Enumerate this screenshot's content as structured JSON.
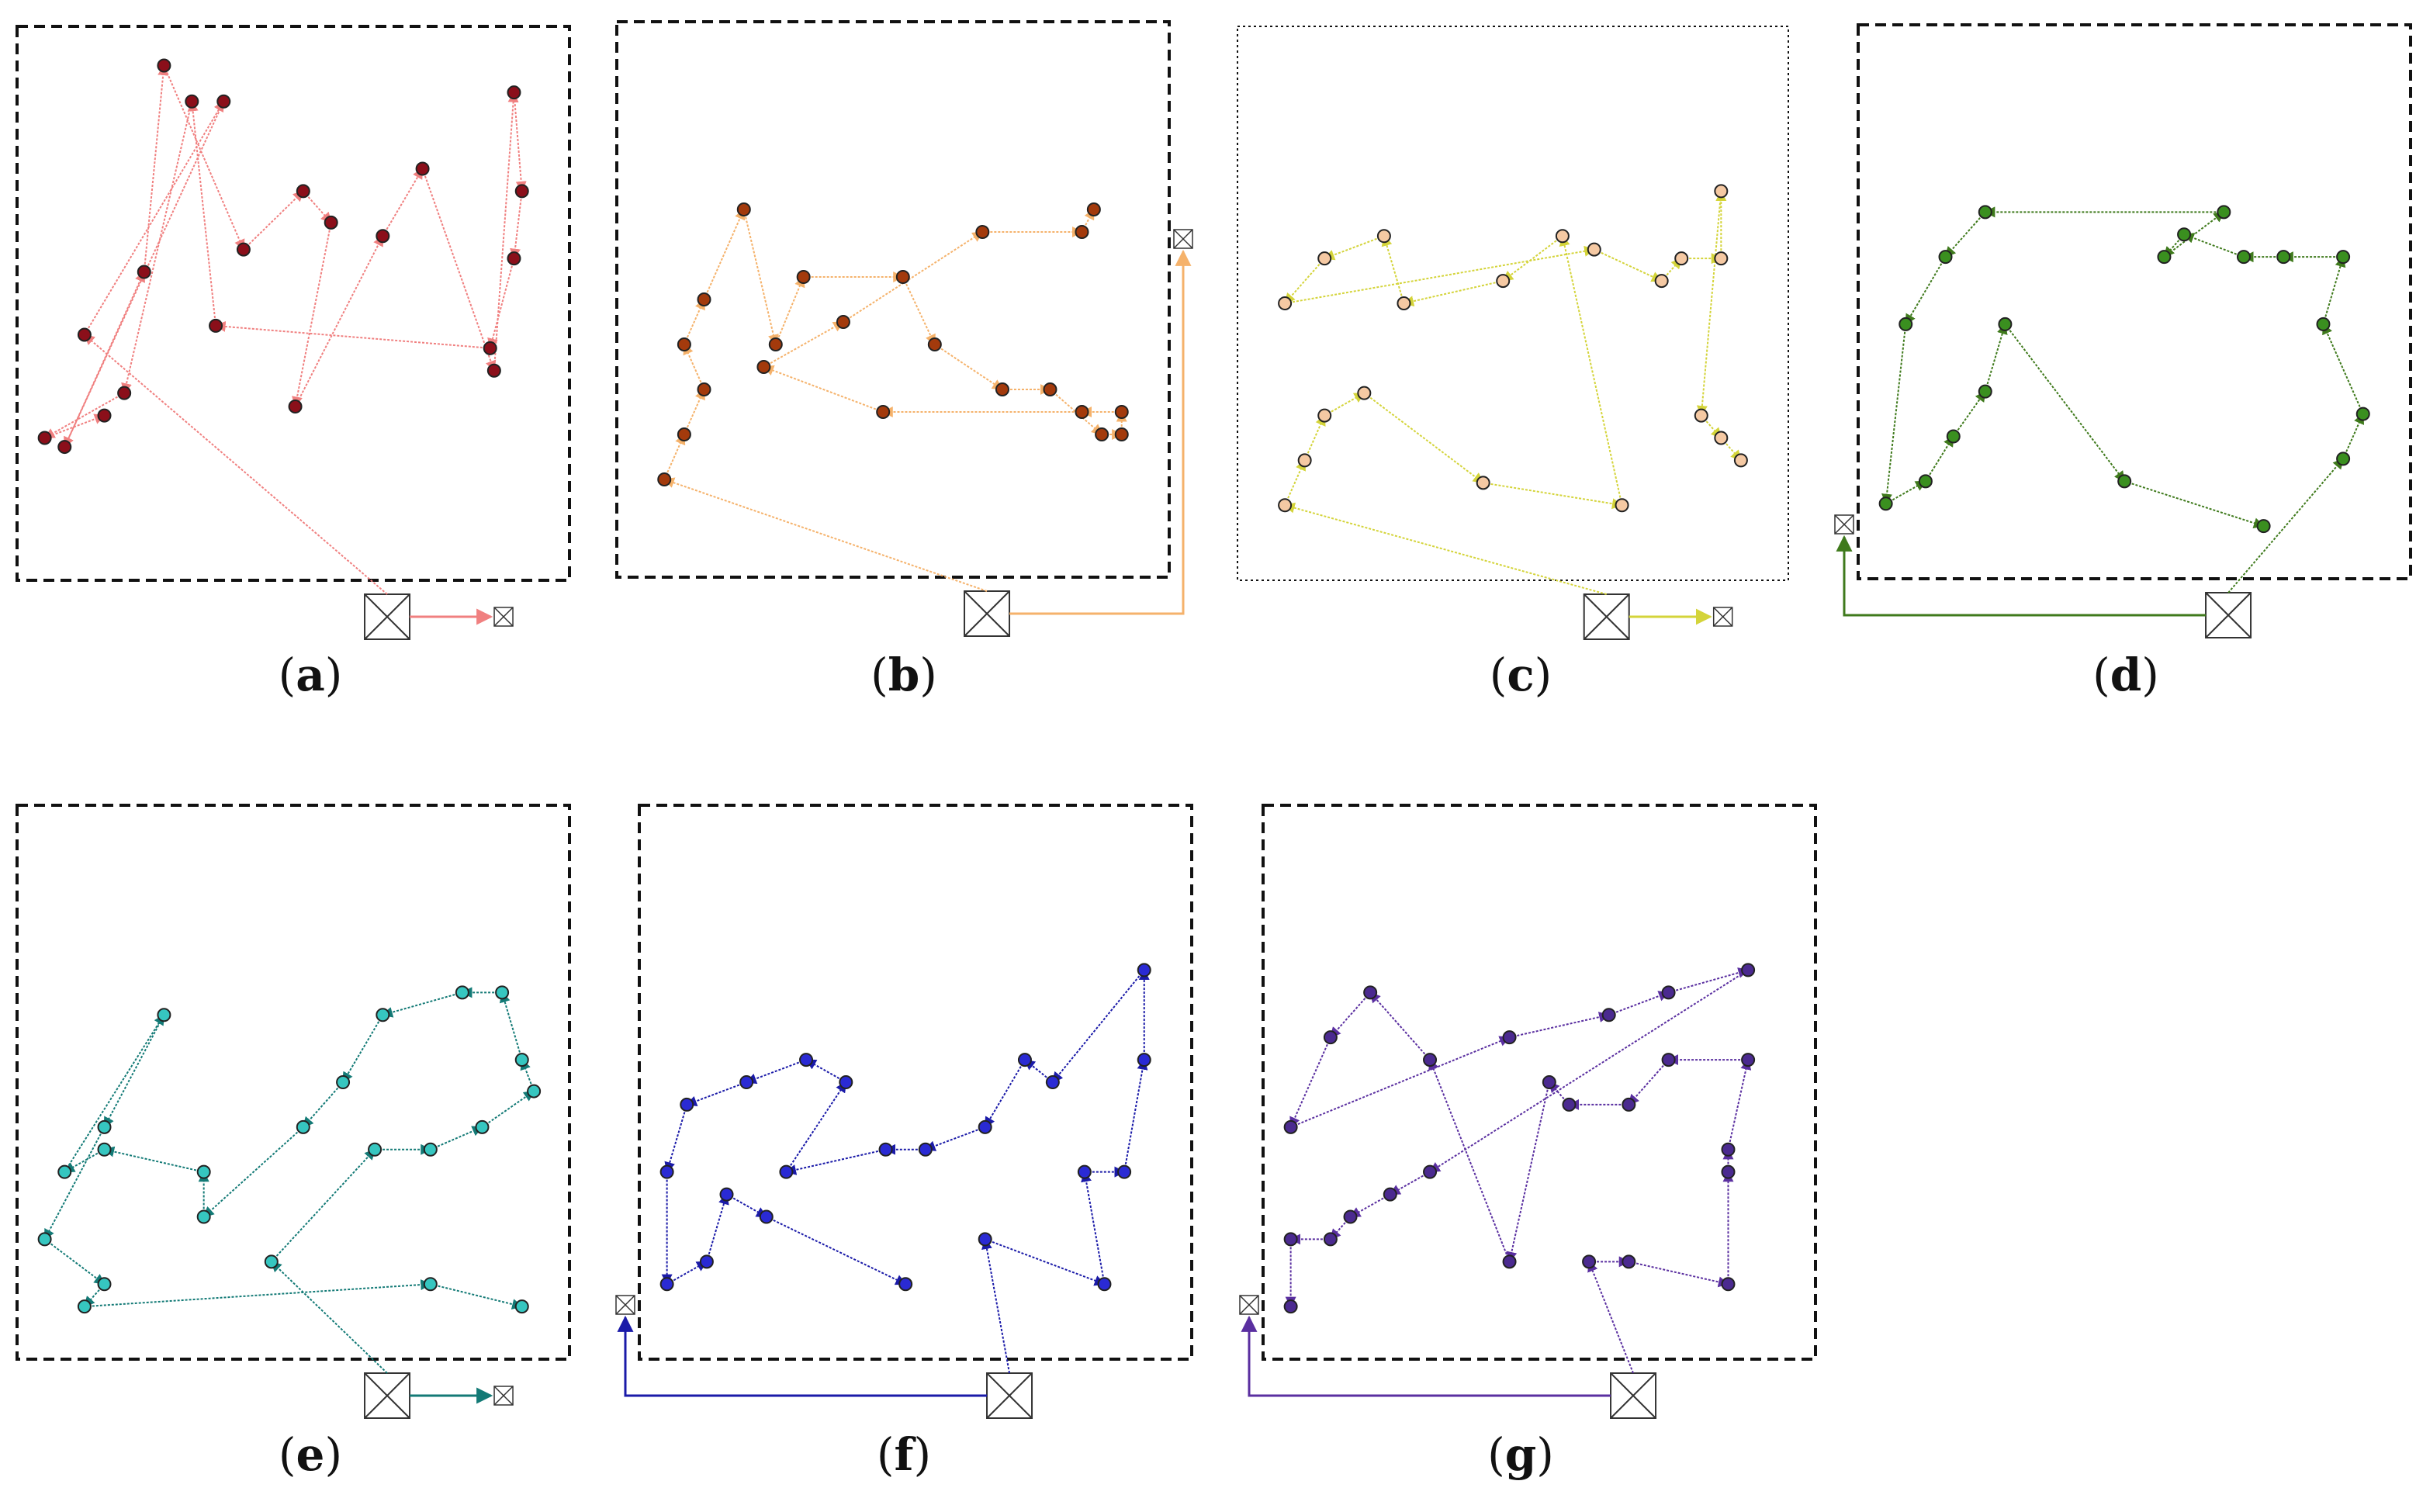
{
  "figure": {
    "panels": [
      {
        "id": "a",
        "caption": "a",
        "color": "#f08080",
        "node_fill": "#8b0f1a",
        "border_style": "dashed",
        "start": "bottom-center",
        "end_label": "end-square",
        "points": [
          [
            1.5,
            9.3
          ],
          [
            5.0,
            14.5
          ],
          [
            1.0,
            6.8
          ],
          [
            3.0,
            10.7
          ],
          [
            3.5,
            15.3
          ],
          [
            5.5,
            11.2
          ],
          [
            7.0,
            12.5
          ],
          [
            7.7,
            11.8
          ],
          [
            6.8,
            7.7
          ],
          [
            9.0,
            11.5
          ],
          [
            10.0,
            13.0
          ],
          [
            11.8,
            8.5
          ],
          [
            12.3,
            14.7
          ],
          [
            12.5,
            12.5
          ],
          [
            12.3,
            11.0
          ],
          [
            11.7,
            9.0
          ],
          [
            4.8,
            9.5
          ],
          [
            4.2,
            14.5
          ],
          [
            2.5,
            8.0
          ],
          [
            0.5,
            7.0
          ],
          [
            2.0,
            7.5
          ]
        ]
      },
      {
        "id": "b",
        "caption": "b",
        "color": "#f5b26b",
        "node_fill": "#a33a0c",
        "border_style": "dashed",
        "start": "bottom-center",
        "end_label": "right-side-square",
        "points": [
          [
            1.0,
            6.0
          ],
          [
            1.5,
            7.0
          ],
          [
            2.0,
            8.0
          ],
          [
            1.5,
            9.0
          ],
          [
            2.0,
            10.0
          ],
          [
            3.0,
            12.0
          ],
          [
            3.8,
            9.0
          ],
          [
            4.5,
            10.5
          ],
          [
            7.0,
            10.5
          ],
          [
            7.8,
            9.0
          ],
          [
            9.5,
            8.0
          ],
          [
            10.7,
            8.0
          ],
          [
            12.0,
            7.0
          ],
          [
            12.5,
            7.0
          ],
          [
            12.5,
            7.5
          ],
          [
            11.5,
            7.5
          ],
          [
            6.5,
            7.5
          ],
          [
            3.5,
            8.5
          ],
          [
            5.5,
            9.5
          ],
          [
            9.0,
            11.5
          ],
          [
            11.5,
            11.5
          ],
          [
            11.8,
            12.0
          ]
        ]
      },
      {
        "id": "c",
        "caption": "c",
        "color": "#d4d43a",
        "node_fill": "#f5c9a3",
        "border_style": "dotted",
        "start": "bottom-center",
        "end_label": "end-square",
        "points": [
          [
            1.0,
            5.5
          ],
          [
            1.5,
            6.5
          ],
          [
            2.0,
            7.5
          ],
          [
            3.0,
            8.0
          ],
          [
            6.0,
            6.0
          ],
          [
            9.5,
            5.5
          ],
          [
            8.0,
            11.5
          ],
          [
            6.5,
            10.5
          ],
          [
            4.0,
            10.0
          ],
          [
            3.5,
            11.5
          ],
          [
            2.0,
            11.0
          ],
          [
            1.0,
            10.0
          ],
          [
            8.8,
            11.2
          ],
          [
            10.5,
            10.5
          ],
          [
            11.0,
            11.0
          ],
          [
            12.0,
            11.0
          ],
          [
            12.0,
            12.5
          ],
          [
            11.5,
            7.5
          ],
          [
            12.0,
            7.0
          ],
          [
            12.5,
            6.5
          ]
        ]
      },
      {
        "id": "d",
        "caption": "d",
        "color": "#3f7a1c",
        "node_fill": "#3a8f1f",
        "border_style": "dashed",
        "start": "bottom-center",
        "end_label": "left-side-square",
        "points": [
          [
            12.0,
            6.5
          ],
          [
            12.5,
            7.5
          ],
          [
            11.5,
            9.5
          ],
          [
            12.0,
            11.0
          ],
          [
            10.5,
            11.0
          ],
          [
            9.5,
            11.0
          ],
          [
            8.0,
            11.5
          ],
          [
            7.5,
            11.0
          ],
          [
            9.0,
            12.0
          ],
          [
            3.0,
            12.0
          ],
          [
            2.0,
            11.0
          ],
          [
            1.0,
            9.5
          ],
          [
            0.5,
            5.5
          ],
          [
            1.5,
            6.0
          ],
          [
            2.2,
            7.0
          ],
          [
            3.0,
            8.0
          ],
          [
            3.5,
            9.5
          ],
          [
            6.5,
            6.0
          ],
          [
            10.0,
            5.0
          ]
        ]
      },
      {
        "id": "e",
        "caption": "e",
        "color": "#137a76",
        "node_fill": "#36c6c0",
        "border_style": "dashed",
        "start": "bottom-center",
        "end_label": "end-square",
        "points": [
          [
            6.2,
            6.0
          ],
          [
            8.8,
            8.5
          ],
          [
            10.2,
            8.5
          ],
          [
            11.5,
            9.0
          ],
          [
            12.8,
            9.8
          ],
          [
            12.5,
            10.5
          ],
          [
            12.0,
            12.0
          ],
          [
            11.0,
            12.0
          ],
          [
            9.0,
            11.5
          ],
          [
            8.0,
            10.0
          ],
          [
            7.0,
            9.0
          ],
          [
            4.5,
            7.0
          ],
          [
            4.5,
            8.0
          ],
          [
            2.0,
            8.5
          ],
          [
            1.0,
            8.0
          ],
          [
            3.5,
            11.5
          ],
          [
            2.0,
            9.0
          ],
          [
            0.5,
            6.5
          ],
          [
            2.0,
            5.5
          ],
          [
            1.5,
            5.0
          ],
          [
            10.2,
            5.5
          ],
          [
            12.5,
            5.0
          ]
        ]
      },
      {
        "id": "f",
        "caption": "f",
        "color": "#1a1aa8",
        "node_fill": "#2a2ad4",
        "border_style": "dashed",
        "start": "bottom-center",
        "end_label": "left-side-square",
        "points": [
          [
            8.5,
            6.5
          ],
          [
            11.5,
            5.5
          ],
          [
            11.0,
            8.0
          ],
          [
            12.0,
            8.0
          ],
          [
            12.5,
            10.5
          ],
          [
            12.5,
            12.5
          ],
          [
            10.2,
            10.0
          ],
          [
            9.5,
            10.5
          ],
          [
            8.5,
            9.0
          ],
          [
            7.0,
            8.5
          ],
          [
            6.0,
            8.5
          ],
          [
            3.5,
            8.0
          ],
          [
            5.0,
            10.0
          ],
          [
            4.0,
            10.5
          ],
          [
            2.5,
            10.0
          ],
          [
            1.0,
            9.5
          ],
          [
            0.5,
            8.0
          ],
          [
            0.5,
            5.5
          ],
          [
            1.5,
            6.0
          ],
          [
            2.0,
            7.5
          ],
          [
            3.0,
            7.0
          ],
          [
            6.5,
            5.5
          ]
        ]
      },
      {
        "id": "g",
        "caption": "g",
        "color": "#5a2fa0",
        "node_fill": "#4b2a90",
        "border_style": "dashed",
        "start": "bottom-center",
        "end_label": "left-side-square",
        "points": [
          [
            8.0,
            6.0
          ],
          [
            9.0,
            6.0
          ],
          [
            11.5,
            5.5
          ],
          [
            11.5,
            8.0
          ],
          [
            11.5,
            8.5
          ],
          [
            12.0,
            10.5
          ],
          [
            10.0,
            10.5
          ],
          [
            9.0,
            9.5
          ],
          [
            7.5,
            9.5
          ],
          [
            7.0,
            10.0
          ],
          [
            6.0,
            6.0
          ],
          [
            4.0,
            10.5
          ],
          [
            2.5,
            12.0
          ],
          [
            1.5,
            11.0
          ],
          [
            0.5,
            9.0
          ],
          [
            6.0,
            11.0
          ],
          [
            8.5,
            11.5
          ],
          [
            10.0,
            12.0
          ],
          [
            12.0,
            12.5
          ],
          [
            4.0,
            8.0
          ],
          [
            3.0,
            7.5
          ],
          [
            2.0,
            7.0
          ],
          [
            1.5,
            6.5
          ],
          [
            0.5,
            6.5
          ],
          [
            0.5,
            5.0
          ]
        ]
      }
    ]
  }
}
